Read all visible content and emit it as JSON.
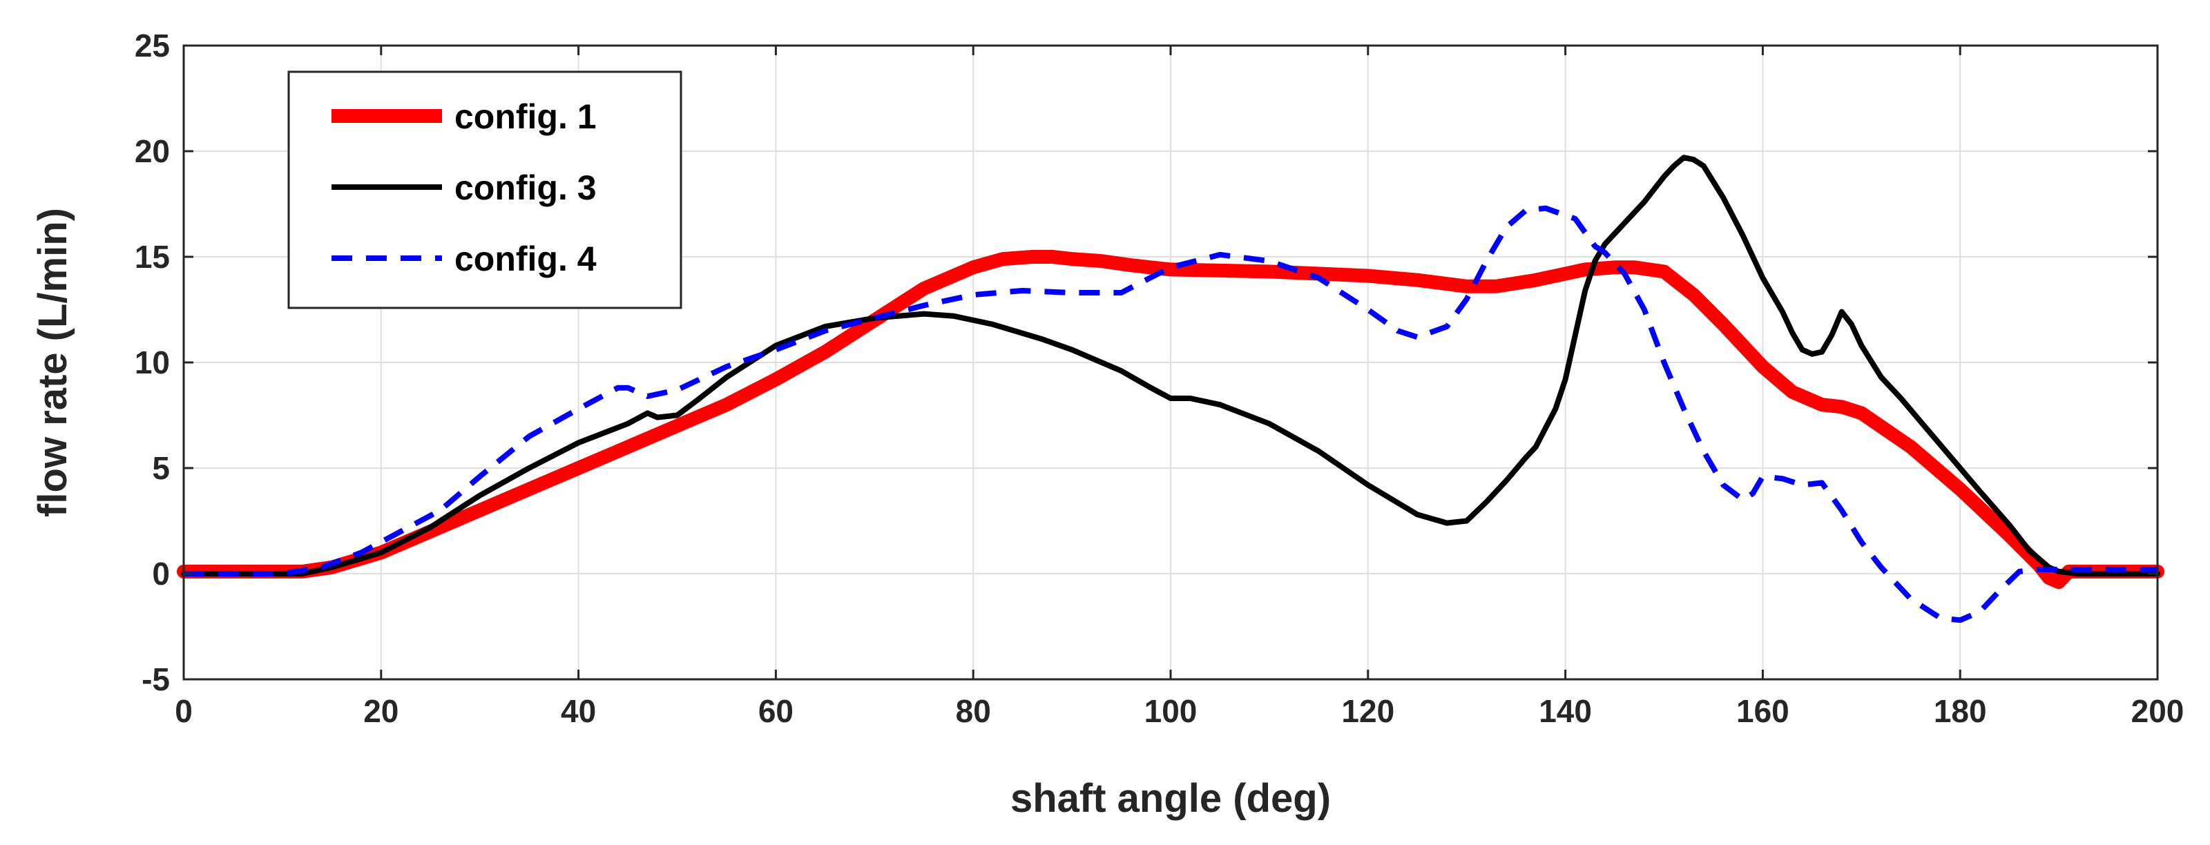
{
  "chart_data": {
    "type": "line",
    "title": "",
    "xlabel": "shaft angle (deg)",
    "ylabel": "flow rate (L/min)",
    "xlim": [
      0,
      200
    ],
    "ylim": [
      -5,
      25
    ],
    "xticks": [
      0,
      20,
      40,
      60,
      80,
      100,
      120,
      140,
      160,
      180,
      200
    ],
    "yticks": [
      -5,
      0,
      5,
      10,
      15,
      20,
      25
    ],
    "grid": true,
    "legend_position": "top-left",
    "series": [
      {
        "name": "config. 1",
        "color": "#ff0000",
        "style": "solid-thick",
        "x": [
          0,
          12,
          15,
          20,
          25,
          30,
          35,
          40,
          45,
          50,
          55,
          60,
          65,
          70,
          75,
          80,
          83,
          86,
          88,
          90,
          93,
          96,
          100,
          110,
          120,
          125,
          130,
          133,
          137,
          140,
          142,
          145,
          147,
          150,
          153,
          156,
          160,
          163,
          166,
          168,
          170,
          175,
          180,
          185,
          188,
          189,
          190,
          191,
          200
        ],
        "y": [
          0.1,
          0.1,
          0.3,
          1.0,
          2.0,
          3.0,
          4.0,
          5.0,
          6.0,
          7.0,
          8.0,
          9.2,
          10.5,
          12.0,
          13.5,
          14.5,
          14.9,
          15.0,
          15.0,
          14.9,
          14.8,
          14.6,
          14.4,
          14.3,
          14.1,
          13.9,
          13.6,
          13.6,
          13.9,
          14.2,
          14.4,
          14.5,
          14.5,
          14.3,
          13.2,
          11.8,
          9.8,
          8.6,
          8.0,
          7.9,
          7.6,
          6.0,
          4.0,
          1.8,
          0.4,
          -0.2,
          -0.4,
          0.1,
          0.1
        ]
      },
      {
        "name": "config. 3",
        "color": "#000000",
        "style": "solid",
        "x": [
          0,
          12,
          15,
          20,
          25,
          30,
          35,
          40,
          45,
          47,
          48,
          50,
          52,
          55,
          60,
          65,
          70,
          75,
          78,
          82,
          87,
          90,
          95,
          98,
          100,
          102,
          105,
          110,
          115,
          120,
          125,
          128,
          130,
          132,
          134,
          136,
          137,
          139,
          140,
          141,
          142,
          143,
          144,
          146,
          148,
          150,
          151,
          152,
          153,
          154,
          156,
          158,
          160,
          162,
          163,
          164,
          165,
          166,
          167,
          168,
          169,
          170,
          172,
          174,
          176,
          178,
          180,
          182,
          185,
          187,
          189,
          190,
          192,
          200
        ],
        "y": [
          0,
          0,
          0.3,
          1.0,
          2.2,
          3.7,
          5.0,
          6.2,
          7.1,
          7.6,
          7.4,
          7.5,
          8.2,
          9.3,
          10.8,
          11.7,
          12.1,
          12.3,
          12.2,
          11.8,
          11.1,
          10.6,
          9.6,
          8.8,
          8.3,
          8.3,
          8.0,
          7.1,
          5.8,
          4.2,
          2.8,
          2.4,
          2.5,
          3.4,
          4.4,
          5.5,
          6.0,
          7.8,
          9.2,
          11.3,
          13.4,
          14.8,
          15.6,
          16.6,
          17.6,
          18.8,
          19.3,
          19.7,
          19.6,
          19.3,
          17.8,
          16.0,
          14.0,
          12.4,
          11.4,
          10.6,
          10.4,
          10.5,
          11.3,
          12.4,
          11.8,
          10.8,
          9.3,
          8.3,
          7.2,
          6.1,
          5.0,
          3.9,
          2.3,
          1.1,
          0.3,
          0.1,
          0.0,
          0.0
        ]
      },
      {
        "name": "config. 4",
        "color": "#0000ff",
        "style": "dashed",
        "x": [
          0,
          10,
          14,
          18,
          22,
          26,
          30,
          35,
          40,
          44,
          45,
          47,
          50,
          55,
          60,
          65,
          70,
          75,
          80,
          85,
          90,
          95,
          100,
          105,
          110,
          115,
          120,
          123,
          125,
          128,
          130,
          132,
          134,
          136,
          138,
          141,
          143,
          144,
          146,
          148,
          150,
          152,
          154,
          156,
          158,
          159,
          160,
          162,
          164,
          166,
          168,
          170,
          172,
          175,
          178,
          180,
          182,
          184,
          186,
          188,
          190,
          192,
          200
        ],
        "y": [
          0,
          0,
          0.3,
          1.0,
          2.0,
          3.0,
          4.6,
          6.5,
          7.8,
          8.8,
          8.8,
          8.4,
          8.7,
          9.8,
          10.6,
          11.5,
          12.1,
          12.7,
          13.2,
          13.4,
          13.3,
          13.3,
          14.5,
          15.1,
          14.8,
          14.0,
          12.5,
          11.5,
          11.2,
          11.7,
          13.0,
          14.8,
          16.4,
          17.2,
          17.3,
          16.8,
          15.5,
          15.2,
          14.2,
          12.5,
          10.0,
          7.8,
          5.8,
          4.2,
          3.5,
          3.8,
          4.6,
          4.5,
          4.2,
          4.3,
          3.0,
          1.5,
          0.3,
          -1.2,
          -2.1,
          -2.2,
          -1.8,
          -0.8,
          0.1,
          0.2,
          0.2,
          0.2,
          0.2
        ]
      }
    ]
  }
}
